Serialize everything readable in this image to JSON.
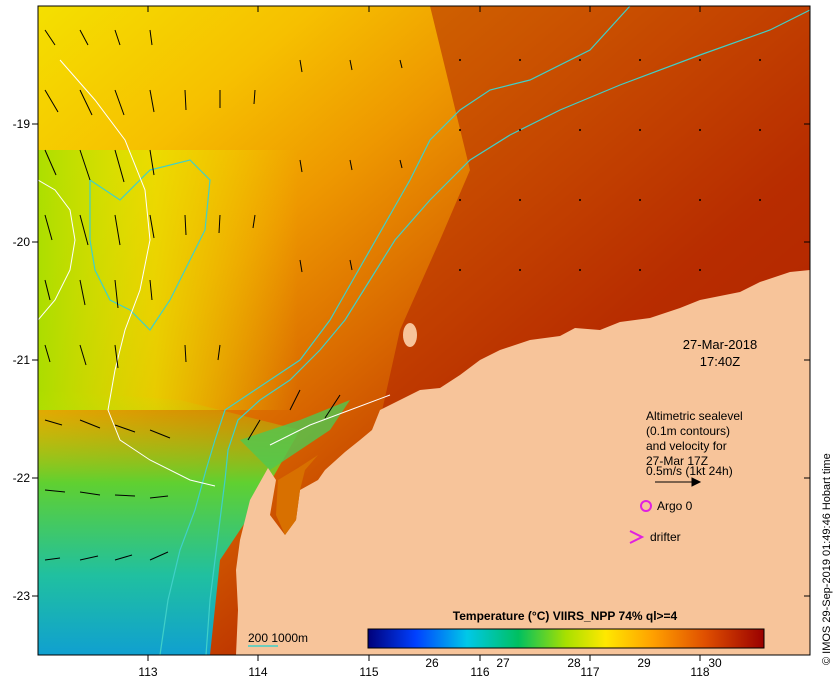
{
  "map": {
    "date_line": "27-Mar-2018",
    "time_line": "17:40Z",
    "legend_lines": [
      "Altimetric sealevel",
      "(0.1m contours)",
      "and velocity for",
      "27-Mar 17Z",
      "0.5m/s (1kt 24h)"
    ],
    "argo_label": "Argo 0",
    "drifter_label": "drifter",
    "contour_label": "200  1000m",
    "colorbar_title": "Temperature (°C) VIIRS_NPP 74% ql>=4",
    "colorbar_ticks": [
      "26",
      "27",
      "28",
      "29",
      "30"
    ],
    "credit": "© IMOS 29-Sep-2019 01:49:46 Hobart time",
    "lon_ticks": [
      "113",
      "114",
      "115",
      "116",
      "117",
      "118"
    ],
    "lat_ticks": [
      "-19",
      "-20",
      "-21",
      "-22",
      "-23"
    ],
    "colors": {
      "land": "#f7c49a",
      "contour": "#40d0c8",
      "sealevel_contour": "#ffffff",
      "argo_marker": "#e020e0"
    }
  }
}
